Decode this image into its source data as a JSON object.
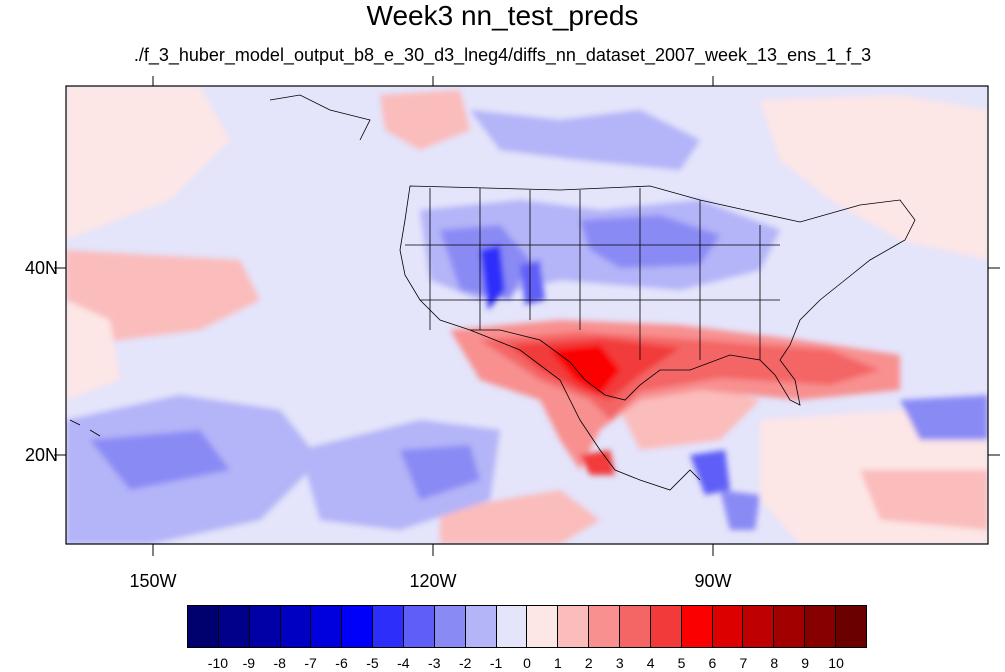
{
  "title": "Week3 nn_test_preds",
  "subtitle": "./f_3_huber_model_output_b8_e_30_d3_lneg4/diffs_nn_dataset_2007_week_13_ens_1_f_3",
  "longitude_labels": [
    "150W",
    "120W",
    "90W"
  ],
  "latitude_labels": [
    "40N",
    "20N"
  ],
  "colorbar": {
    "labels": [
      "-10",
      "-9",
      "-8",
      "-7",
      "-6",
      "-5",
      "-4",
      "-3",
      "-2",
      "-1",
      "0",
      "1",
      "2",
      "3",
      "4",
      "5",
      "6",
      "7",
      "8",
      "9",
      "10"
    ],
    "colors": [
      "#00006e",
      "#00008a",
      "#0000a6",
      "#0000c2",
      "#0000de",
      "#0000fa",
      "#2e2efa",
      "#5f5ff7",
      "#8a8af5",
      "#b4b4f8",
      "#e4e4fb",
      "#fde6e6",
      "#fbbcbc",
      "#f89090",
      "#f46565",
      "#f23a3a",
      "#fa0000",
      "#dc0000",
      "#bf0000",
      "#a20000",
      "#860000",
      "#6b0000"
    ]
  },
  "colors": {
    "background_field": "#e4e4fb",
    "coast": "#000000"
  }
}
